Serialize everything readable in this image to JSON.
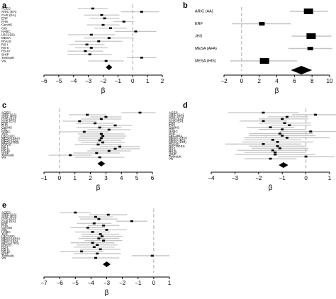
{
  "colors": {
    "ci_line": "#c4c4c4",
    "point": "#000000",
    "ref_line": "#aaaaaa",
    "axis": "#000000",
    "text": "#000000"
  },
  "chart_data": [
    {
      "type": "forest",
      "panel": "a",
      "xlabel": "β",
      "xlim": [
        -6,
        2
      ],
      "xticks": [
        -6,
        -5,
        -4,
        -3,
        -2,
        -1,
        0,
        1,
        2
      ],
      "reference_x": 0,
      "studies": [
        {
          "label": "AGES",
          "est": -2.7,
          "lo": -3.7,
          "hi": -1.7
        },
        {
          "label": "ARIC (EA)",
          "est": 0.6,
          "lo": -0.8,
          "hi": 1.8
        },
        {
          "label": "CHS (EA)",
          "est": -2.1,
          "lo": -3.3,
          "hi": -0.9
        },
        {
          "label": "ERF",
          "est": -1.9,
          "lo": -2.9,
          "hi": -0.9
        },
        {
          "label": "FHS",
          "est": -0.6,
          "lo": -1.3,
          "hi": 0.1
        },
        {
          "label": "GenHS",
          "est": -2.0,
          "lo": -3.1,
          "hi": -0.9
        },
        {
          "label": "GIS",
          "est": -1.5,
          "lo": -2.6,
          "hi": -0.4
        },
        {
          "label": "HABC",
          "est": 0.2,
          "lo": -1.2,
          "hi": 1.6
        },
        {
          "label": "LBC1921",
          "est": -2.8,
          "lo": -4.4,
          "hi": -1.2
        },
        {
          "label": "MESA",
          "est": -1.6,
          "lo": -3.3,
          "hi": 0.1
        },
        {
          "label": "PIVUS",
          "est": -2.3,
          "lo": -3.9,
          "hi": -0.7
        },
        {
          "label": "RS-I",
          "est": -3.1,
          "lo": -4.3,
          "hi": -1.9
        },
        {
          "label": "RS-II",
          "est": -2.8,
          "lo": -3.9,
          "hi": -1.7
        },
        {
          "label": "RS-III",
          "est": -3.2,
          "lo": -4.4,
          "hi": -2.0
        },
        {
          "label": "SHIP",
          "est": -2.9,
          "lo": -4.4,
          "hi": -1.4
        },
        {
          "label": "TwinsUK",
          "est": 0.6,
          "lo": -0.4,
          "hi": 1.6
        },
        {
          "label": "Vis",
          "est": -1.8,
          "lo": -3.0,
          "hi": -0.6
        }
      ],
      "summary": {
        "est": -1.6,
        "lo": -1.82,
        "hi": -1.38
      }
    },
    {
      "type": "forest",
      "panel": "b",
      "xlabel": "β",
      "xlim": [
        -2,
        10
      ],
      "xticks": [
        -2,
        0,
        2,
        4,
        6,
        8,
        10
      ],
      "reference_x": 0,
      "studies": [
        {
          "label": "ARIC (AA)",
          "est": 7.6,
          "lo": 5.5,
          "hi": 9.8
        },
        {
          "label": "ERF",
          "est": 2.3,
          "lo": -1.1,
          "hi": 5.6
        },
        {
          "label": "JHS",
          "est": 7.9,
          "lo": 5.7,
          "hi": 10.2
        },
        {
          "label": "MESA (AFA)",
          "est": 7.8,
          "lo": 5.3,
          "hi": 10.3
        },
        {
          "label": "MESA (HIS)",
          "est": 2.6,
          "lo": -1.3,
          "hi": 6.3
        }
      ],
      "summary": {
        "est": 6.8,
        "lo": 5.6,
        "hi": 8.0
      }
    },
    {
      "type": "forest",
      "panel": "c",
      "xlabel": "β",
      "xlim": [
        -1,
        6
      ],
      "xticks": [
        -1,
        0,
        1,
        2,
        3,
        4,
        5,
        6
      ],
      "reference_x": 0,
      "studies": [
        {
          "label": "AGES",
          "est": 5.2,
          "lo": 4.0,
          "hi": 6.2
        },
        {
          "label": "ARIC (AA)",
          "est": 1.8,
          "lo": 0.6,
          "hi": 3.0
        },
        {
          "label": "ARIC (EA)",
          "est": 3.0,
          "lo": 2.0,
          "hi": 4.0
        },
        {
          "label": "CHS (AA)",
          "est": 2.7,
          "lo": 1.4,
          "hi": 4.0
        },
        {
          "label": "CHS (EA)",
          "est": 1.3,
          "lo": 0.2,
          "hi": 2.4
        },
        {
          "label": "ERF",
          "est": 2.3,
          "lo": 1.1,
          "hi": 3.5
        },
        {
          "label": "FHS",
          "est": 3.6,
          "lo": 2.5,
          "hi": 4.7
        },
        {
          "label": "GenHS",
          "est": 2.6,
          "lo": 1.1,
          "hi": 4.0
        },
        {
          "label": "GIS",
          "est": 3.2,
          "lo": 1.8,
          "hi": 4.6
        },
        {
          "label": "HABC",
          "est": 1.6,
          "lo": 0.0,
          "hi": 3.2
        },
        {
          "label": "JHS",
          "est": 2.7,
          "lo": 1.2,
          "hi": 4.2
        },
        {
          "label": "LBC1921",
          "est": 2.8,
          "lo": 1.3,
          "hi": 4.3
        },
        {
          "label": "MESA (AFA)",
          "est": 2.7,
          "lo": 1.2,
          "hi": 4.2
        },
        {
          "label": "MESA (EA)",
          "est": 2.6,
          "lo": 1.2,
          "hi": 4.0
        },
        {
          "label": "MESA (HIS)",
          "est": 2.8,
          "lo": 1.4,
          "hi": 4.2
        },
        {
          "label": "PIVUS",
          "est": 2.5,
          "lo": 1.0,
          "hi": 4.0
        },
        {
          "label": "RS-I",
          "est": 3.9,
          "lo": 2.6,
          "hi": 5.2
        },
        {
          "label": "RS-II",
          "est": 3.6,
          "lo": 2.0,
          "hi": 5.2
        },
        {
          "label": "RS-III",
          "est": 3.2,
          "lo": 1.8,
          "hi": 4.6
        },
        {
          "label": "SHIP",
          "est": 2.4,
          "lo": 0.9,
          "hi": 3.9
        },
        {
          "label": "TwinsUK",
          "est": 0.7,
          "lo": -0.7,
          "hi": 2.1
        },
        {
          "label": "Vis",
          "est": 2.6,
          "lo": 1.0,
          "hi": 4.2
        }
      ],
      "summary": {
        "est": 2.7,
        "lo": 2.45,
        "hi": 2.95
      }
    },
    {
      "type": "forest",
      "panel": "d",
      "xlabel": "β",
      "xlim": [
        -4,
        1
      ],
      "xticks": [
        -4,
        -3,
        -2,
        -1,
        0,
        1
      ],
      "reference_x": 0,
      "studies": [
        {
          "label": "AGES",
          "est": -1.8,
          "lo": -3.3,
          "hi": -0.3
        },
        {
          "label": "ARIC (AA)",
          "est": 0.4,
          "lo": -0.6,
          "hi": 1.3
        },
        {
          "label": "ARIC (EA)",
          "est": -0.8,
          "lo": -1.6,
          "hi": 0.1
        },
        {
          "label": "CHS (AA)",
          "est": -1.0,
          "lo": -2.0,
          "hi": 0.1
        },
        {
          "label": "CHS (EA)",
          "est": -1.8,
          "lo": -2.8,
          "hi": -0.8
        },
        {
          "label": "ERF",
          "est": -0.9,
          "lo": -2.0,
          "hi": 0.2
        },
        {
          "label": "FHS",
          "est": -0.7,
          "lo": -1.5,
          "hi": 0.2
        },
        {
          "label": "GenHS",
          "est": -1.5,
          "lo": -2.5,
          "hi": -0.5
        },
        {
          "label": "GIS",
          "est": -1.0,
          "lo": -2.0,
          "hi": 0.0
        },
        {
          "label": "HABC",
          "est": 0.2,
          "lo": -1.1,
          "hi": 1.4
        },
        {
          "label": "JHS",
          "est": -1.1,
          "lo": -2.4,
          "hi": 0.3
        },
        {
          "label": "LBC1921",
          "est": -1.0,
          "lo": -2.4,
          "hi": 0.4
        },
        {
          "label": "MESA (AFA)",
          "est": -0.8,
          "lo": -2.6,
          "hi": 1.0
        },
        {
          "label": "MESA (EA)",
          "est": -1.4,
          "lo": -2.6,
          "hi": -0.2
        },
        {
          "label": "MESA (HIS)",
          "est": -1.2,
          "lo": -2.7,
          "hi": 0.3
        },
        {
          "label": "PIVUS",
          "est": -1.8,
          "lo": -3.4,
          "hi": -0.2
        },
        {
          "label": "RECODES",
          "est": -1.2,
          "lo": -2.4,
          "hi": 0.0
        },
        {
          "label": "RS-I",
          "est": -1.1,
          "lo": -2.3,
          "hi": 0.1
        },
        {
          "label": "RS-II",
          "est": -1.4,
          "lo": -2.9,
          "hi": 0.1
        },
        {
          "label": "RS-III",
          "est": -1.3,
          "lo": -2.6,
          "hi": 0.0
        },
        {
          "label": "SHIP",
          "est": -1.3,
          "lo": -3.0,
          "hi": 0.4
        },
        {
          "label": "TwinsUK",
          "est": 0.0,
          "lo": -1.2,
          "hi": 1.2
        },
        {
          "label": "Vis",
          "est": -1.5,
          "lo": -2.6,
          "hi": -0.4
        }
      ],
      "summary": {
        "est": -0.95,
        "lo": -1.15,
        "hi": -0.75
      }
    },
    {
      "type": "forest",
      "panel": "e",
      "xlabel": "β",
      "xlim": [
        -7,
        1
      ],
      "xticks": [
        -7,
        -6,
        -5,
        -4,
        -3,
        -2,
        -1,
        0,
        1
      ],
      "reference_x": 0,
      "studies": [
        {
          "label": "AGES",
          "est": -5.0,
          "lo": -6.0,
          "hi": -4.0
        },
        {
          "label": "ARIC (AA)",
          "est": -2.9,
          "lo": -4.1,
          "hi": -1.7
        },
        {
          "label": "ARIC (EA)",
          "est": -3.7,
          "lo": -4.8,
          "hi": -2.6
        },
        {
          "label": "CHS (AA)",
          "est": -3.5,
          "lo": -4.7,
          "hi": -2.3
        },
        {
          "label": "CHS (EA)",
          "est": -1.4,
          "lo": -2.4,
          "hi": -0.4
        },
        {
          "label": "ERF",
          "est": -3.8,
          "lo": -4.9,
          "hi": -2.7
        },
        {
          "label": "FHS",
          "est": -3.2,
          "lo": -4.2,
          "hi": -2.2
        },
        {
          "label": "GenHS",
          "est": -4.2,
          "lo": -5.3,
          "hi": -3.1
        },
        {
          "label": "GIS",
          "est": -3.0,
          "lo": -4.3,
          "hi": -1.7
        },
        {
          "label": "HABC",
          "est": -3.9,
          "lo": -5.0,
          "hi": -2.8
        },
        {
          "label": "JHS",
          "est": -3.4,
          "lo": -4.6,
          "hi": -2.2
        },
        {
          "label": "LBC1921",
          "est": -3.3,
          "lo": -4.6,
          "hi": -2.0
        },
        {
          "label": "MESA (AFA)",
          "est": -3.5,
          "lo": -4.8,
          "hi": -2.2
        },
        {
          "label": "MESA (EA)",
          "est": -3.2,
          "lo": -4.4,
          "hi": -2.0
        },
        {
          "label": "MESA (HIS)",
          "est": -3.9,
          "lo": -5.3,
          "hi": -2.5
        },
        {
          "label": "PIVUS",
          "est": -3.6,
          "lo": -4.9,
          "hi": -2.3
        },
        {
          "label": "RS-I",
          "est": -3.8,
          "lo": -5.1,
          "hi": -2.5
        },
        {
          "label": "RS-II",
          "est": -3.4,
          "lo": -4.7,
          "hi": -2.1
        },
        {
          "label": "RS-III",
          "est": -4.6,
          "lo": -6.0,
          "hi": -3.2
        },
        {
          "label": "SHIP",
          "est": -3.6,
          "lo": -5.1,
          "hi": -2.1
        },
        {
          "label": "TwinsUK",
          "est": -0.1,
          "lo": -1.4,
          "hi": 1.0
        },
        {
          "label": "Vis",
          "est": -3.7,
          "lo": -5.2,
          "hi": -2.2
        }
      ],
      "summary": {
        "est": -3.0,
        "lo": -3.25,
        "hi": -2.75
      }
    }
  ]
}
